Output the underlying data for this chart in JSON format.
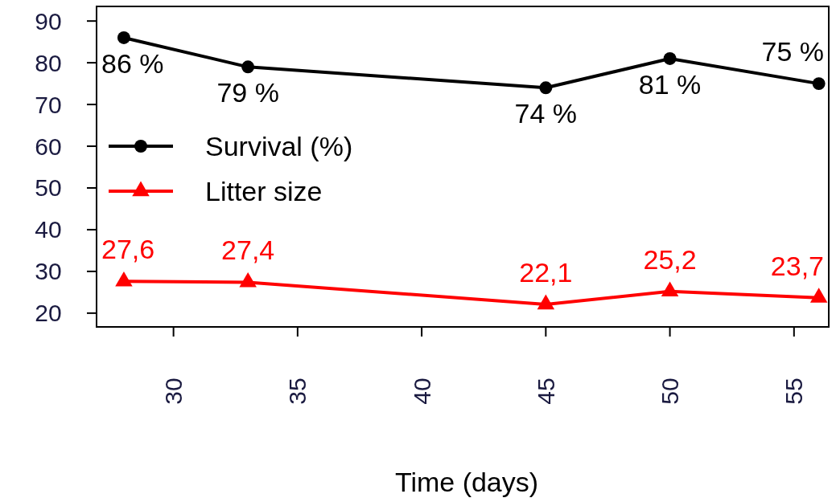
{
  "chart_data": {
    "type": "line",
    "xlabel": "Time (days)",
    "x": [
      28,
      33,
      45,
      50,
      56
    ],
    "xlim": [
      26.9,
      56.4
    ],
    "xticks": [
      30,
      35,
      40,
      45,
      50,
      55
    ],
    "ylim": [
      16.7,
      93.5
    ],
    "yticks": [
      20,
      30,
      40,
      50,
      60,
      70,
      80,
      90
    ],
    "legend": "left",
    "grid": false,
    "series": [
      {
        "name": "Survival (%)",
        "color": "#000000",
        "marker": "circle",
        "values": [
          86,
          79,
          74,
          81,
          75
        ],
        "value_labels": [
          "86 %",
          "79 %",
          "74 %",
          "81 %",
          "75 %"
        ]
      },
      {
        "name": "Litter size",
        "color": "#ff0000",
        "marker": "triangle",
        "values": [
          27.6,
          27.4,
          22.1,
          25.2,
          23.7
        ],
        "value_labels": [
          "27,6",
          "27,4",
          "22,1",
          "25,2",
          "23,7"
        ]
      }
    ]
  }
}
